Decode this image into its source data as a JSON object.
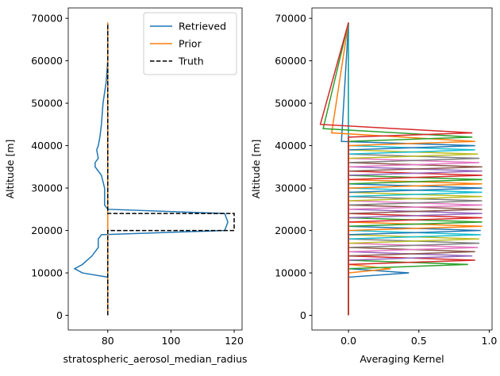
{
  "chart_data": [
    {
      "type": "line",
      "xlabel": "stratospheric_aerosol_median_radius",
      "ylabel": "Altitude [m]",
      "xlim": [
        67.5,
        122.5
      ],
      "ylim": [
        -3450,
        72450
      ],
      "xticks": [
        80,
        100,
        120
      ],
      "yticks": [
        0,
        10000,
        20000,
        30000,
        40000,
        50000,
        60000,
        70000
      ],
      "legend": "upper right",
      "series": [
        {
          "name": "Retrieved",
          "color": "#1f77b4",
          "linestyle": "solid",
          "x": [
            80,
            80,
            72,
            69.5,
            72,
            75,
            77,
            77,
            78,
            117,
            118,
            117,
            80,
            79,
            79,
            79,
            78,
            76,
            76,
            77,
            76.5,
            77,
            77.5,
            78,
            78.5,
            79.5,
            80,
            80
          ],
          "y": [
            0,
            9000,
            10000,
            11000,
            12000,
            14000,
            16000,
            18000,
            19000,
            20000,
            22000,
            24000,
            25000,
            26000,
            28000,
            30000,
            33000,
            35000,
            36000,
            37000,
            39000,
            40000,
            42000,
            45000,
            50000,
            55000,
            60000,
            69000
          ]
        },
        {
          "name": "Prior",
          "color": "#ff7f0e",
          "linestyle": "solid",
          "x": [
            80,
            80
          ],
          "y": [
            0,
            69000
          ]
        },
        {
          "name": "Truth",
          "color": "#000000",
          "linestyle": "dashed",
          "x": [
            80,
            80,
            120,
            120,
            80,
            80
          ],
          "y": [
            0,
            20000,
            20000,
            24000,
            24000,
            69000
          ]
        }
      ]
    },
    {
      "type": "line",
      "xlabel": "Averaging Kernel",
      "ylabel": "Altitude [m]",
      "xlim": [
        -0.26,
        1.02
      ],
      "ylim": [
        -3450,
        72450
      ],
      "xticks": [
        {
          "value": 0,
          "label": "0.0"
        },
        {
          "value": 0.5,
          "label": "0.5"
        },
        {
          "value": 1,
          "label": "1.0"
        }
      ],
      "yticks": [
        0,
        10000,
        20000,
        30000,
        40000,
        50000,
        60000,
        70000
      ],
      "series": [
        {
          "color": "#1f77b4",
          "x": [
            0,
            0,
            0.43,
            0,
            0
          ],
          "y": [
            0,
            9000,
            10000,
            11000,
            69000
          ]
        },
        {
          "color": "#ff7f0e",
          "x": [
            0,
            0,
            0.3,
            0,
            0
          ],
          "y": [
            0,
            10000,
            11000,
            12000,
            69000
          ]
        },
        {
          "color": "#2ca02c",
          "x": [
            0,
            0,
            0.85,
            0,
            0
          ],
          "y": [
            0,
            11000,
            12000,
            13000,
            69000
          ]
        },
        {
          "color": "#d62728",
          "x": [
            0,
            0,
            0.9,
            0,
            0
          ],
          "y": [
            0,
            12000,
            13000,
            14000,
            69000
          ]
        },
        {
          "color": "#9467bd",
          "x": [
            0,
            0,
            0.88,
            0,
            0
          ],
          "y": [
            0,
            13000,
            14000,
            15000,
            69000
          ]
        },
        {
          "color": "#8c564b",
          "x": [
            0,
            0,
            0.9,
            0,
            0
          ],
          "y": [
            0,
            14000,
            15000,
            16000,
            69000
          ]
        },
        {
          "color": "#e377c2",
          "x": [
            0,
            0,
            0.92,
            0,
            0
          ],
          "y": [
            0,
            15000,
            16000,
            17000,
            69000
          ]
        },
        {
          "color": "#7f7f7f",
          "x": [
            0,
            0,
            0.93,
            0,
            0
          ],
          "y": [
            0,
            16000,
            17000,
            18000,
            69000
          ]
        },
        {
          "color": "#bcbd22",
          "x": [
            0,
            0,
            0.93,
            0,
            0
          ],
          "y": [
            0,
            17000,
            18000,
            19000,
            69000
          ]
        },
        {
          "color": "#17becf",
          "x": [
            0,
            0,
            0.94,
            0,
            0
          ],
          "y": [
            0,
            18000,
            19000,
            20000,
            69000
          ]
        },
        {
          "color": "#1f77b4",
          "x": [
            0,
            0,
            0.94,
            0,
            0
          ],
          "y": [
            0,
            19000,
            20000,
            21000,
            69000
          ]
        },
        {
          "color": "#ff7f0e",
          "x": [
            0,
            0,
            0.95,
            0,
            0
          ],
          "y": [
            0,
            20000,
            21000,
            22000,
            69000
          ]
        },
        {
          "color": "#2ca02c",
          "x": [
            0,
            0,
            0.95,
            0,
            0
          ],
          "y": [
            0,
            21000,
            22000,
            23000,
            69000
          ]
        },
        {
          "color": "#d62728",
          "x": [
            0,
            0,
            0.95,
            0,
            0
          ],
          "y": [
            0,
            22000,
            23000,
            24000,
            69000
          ]
        },
        {
          "color": "#9467bd",
          "x": [
            0,
            0,
            0.95,
            0,
            0
          ],
          "y": [
            0,
            23000,
            24000,
            25000,
            69000
          ]
        },
        {
          "color": "#8c564b",
          "x": [
            0,
            0,
            0.95,
            0,
            0
          ],
          "y": [
            0,
            24000,
            25000,
            26000,
            69000
          ]
        },
        {
          "color": "#e377c2",
          "x": [
            0,
            0,
            0.95,
            0,
            0
          ],
          "y": [
            0,
            25000,
            26000,
            27000,
            69000
          ]
        },
        {
          "color": "#7f7f7f",
          "x": [
            0,
            0,
            0.95,
            0,
            0
          ],
          "y": [
            0,
            26000,
            27000,
            28000,
            69000
          ]
        },
        {
          "color": "#bcbd22",
          "x": [
            0,
            0,
            0.95,
            0,
            0
          ],
          "y": [
            0,
            27000,
            28000,
            29000,
            69000
          ]
        },
        {
          "color": "#17becf",
          "x": [
            0,
            0,
            0.95,
            0,
            0
          ],
          "y": [
            0,
            28000,
            29000,
            30000,
            69000
          ]
        },
        {
          "color": "#1f77b4",
          "x": [
            0,
            0,
            0.95,
            0,
            0
          ],
          "y": [
            0,
            29000,
            30000,
            31000,
            69000
          ]
        },
        {
          "color": "#ff7f0e",
          "x": [
            0,
            0,
            0.95,
            0,
            0
          ],
          "y": [
            0,
            30000,
            31000,
            32000,
            69000
          ]
        },
        {
          "color": "#2ca02c",
          "x": [
            0,
            0,
            0.95,
            0,
            0
          ],
          "y": [
            0,
            31000,
            32000,
            33000,
            69000
          ]
        },
        {
          "color": "#d62728",
          "x": [
            0,
            0,
            0.95,
            0,
            0
          ],
          "y": [
            0,
            32000,
            33000,
            34000,
            69000
          ]
        },
        {
          "color": "#9467bd",
          "x": [
            0,
            0,
            0.95,
            0,
            0
          ],
          "y": [
            0,
            33000,
            34000,
            35000,
            69000
          ]
        },
        {
          "color": "#8c564b",
          "x": [
            0,
            0,
            0.95,
            0,
            0
          ],
          "y": [
            0,
            34000,
            35000,
            36000,
            69000
          ]
        },
        {
          "color": "#e377c2",
          "x": [
            0,
            0,
            0.93,
            0,
            0
          ],
          "y": [
            0,
            35000,
            36000,
            37000,
            69000
          ]
        },
        {
          "color": "#7f7f7f",
          "x": [
            0,
            0,
            0.93,
            0,
            0
          ],
          "y": [
            0,
            36000,
            37000,
            38000,
            69000
          ]
        },
        {
          "color": "#bcbd22",
          "x": [
            0,
            0,
            0.92,
            0,
            0
          ],
          "y": [
            0,
            37000,
            38000,
            39000,
            69000
          ]
        },
        {
          "color": "#17becf",
          "x": [
            0,
            0,
            0.9,
            0,
            0
          ],
          "y": [
            0,
            38000,
            39000,
            40000,
            69000
          ]
        },
        {
          "color": "#1f77b4",
          "x": [
            0,
            0,
            0.9,
            -0.05,
            0
          ],
          "y": [
            0,
            39000,
            40000,
            41000,
            69000
          ]
        },
        {
          "color": "#ff7f0e",
          "x": [
            0,
            0,
            0.9,
            -0.12,
            0
          ],
          "y": [
            0,
            40000,
            41000,
            43000,
            69000
          ]
        },
        {
          "color": "#2ca02c",
          "x": [
            0,
            0,
            0.88,
            -0.18,
            0
          ],
          "y": [
            0,
            41000,
            42000,
            44000,
            69000
          ]
        },
        {
          "color": "#d62728",
          "x": [
            0,
            0,
            0.88,
            -0.2,
            0
          ],
          "y": [
            0,
            42000,
            43000,
            45000,
            69000
          ]
        }
      ]
    }
  ]
}
